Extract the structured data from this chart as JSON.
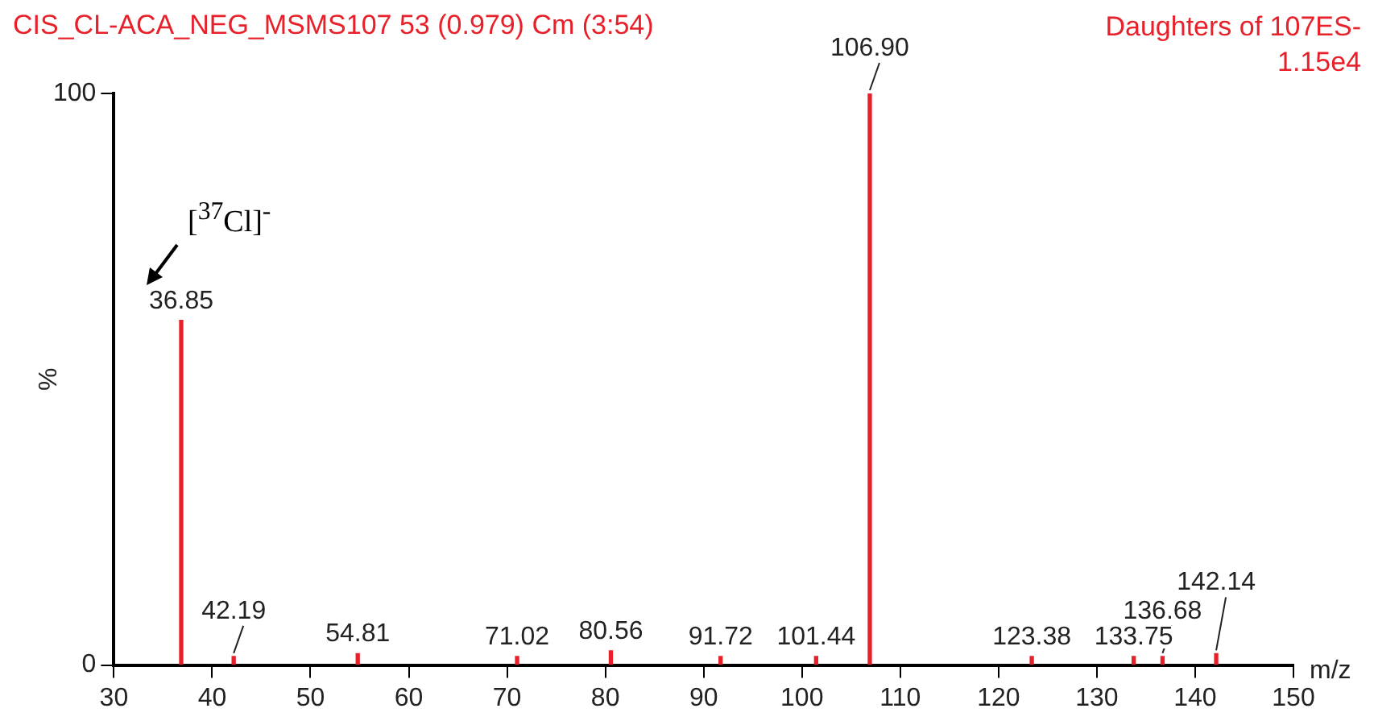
{
  "chart_data": {
    "type": "bar",
    "title": "CIS_CL-ACA_NEG_MSMS107 53 (0.979) Cm (3:54)",
    "xlabel": "m/z",
    "ylabel": "%",
    "x": [
      36.85,
      42.19,
      54.81,
      71.02,
      80.56,
      91.72,
      101.44,
      106.9,
      123.38,
      133.75,
      136.68,
      142.14
    ],
    "values": [
      60.3,
      1.5,
      2,
      1.5,
      2.5,
      1.5,
      1.5,
      100,
      1.5,
      1.5,
      1.5,
      2
    ],
    "color": "#e8202a",
    "xlim": [
      30,
      150
    ],
    "xticks": [
      30,
      40,
      50,
      60,
      70,
      80,
      90,
      100,
      110,
      120,
      130,
      140,
      150
    ],
    "ylim": [
      0,
      100
    ],
    "yticks": [
      0,
      100
    ],
    "grid": false,
    "annotations": [
      {
        "text": "36.85",
        "x": 36.85,
        "y": 60.3
      },
      {
        "text": "42.19",
        "x": 42.19,
        "y": 1.5
      },
      {
        "text": "54.81",
        "x": 54.81,
        "y": 2
      },
      {
        "text": "71.02",
        "x": 71.02,
        "y": 1.5
      },
      {
        "text": "80.56",
        "x": 80.56,
        "y": 2.5
      },
      {
        "text": "91.72",
        "x": 91.72,
        "y": 1.5
      },
      {
        "text": "101.44",
        "x": 101.44,
        "y": 1.5
      },
      {
        "text": "106.90",
        "x": 106.9,
        "y": 100
      },
      {
        "text": "123.38",
        "x": 123.38,
        "y": 1.5
      },
      {
        "text": "133.75",
        "x": 133.75,
        "y": 1.5
      },
      {
        "text": "136.68",
        "x": 136.68,
        "y": 1.5
      },
      {
        "text": "142.14",
        "x": 142.14,
        "y": 2
      },
      {
        "text": "[$^{37}$Cl]$^{-}$",
        "x": 36.85,
        "y": 60.3
      },
      "Daughters of 107ES-",
      "1.15e4"
    ]
  }
}
